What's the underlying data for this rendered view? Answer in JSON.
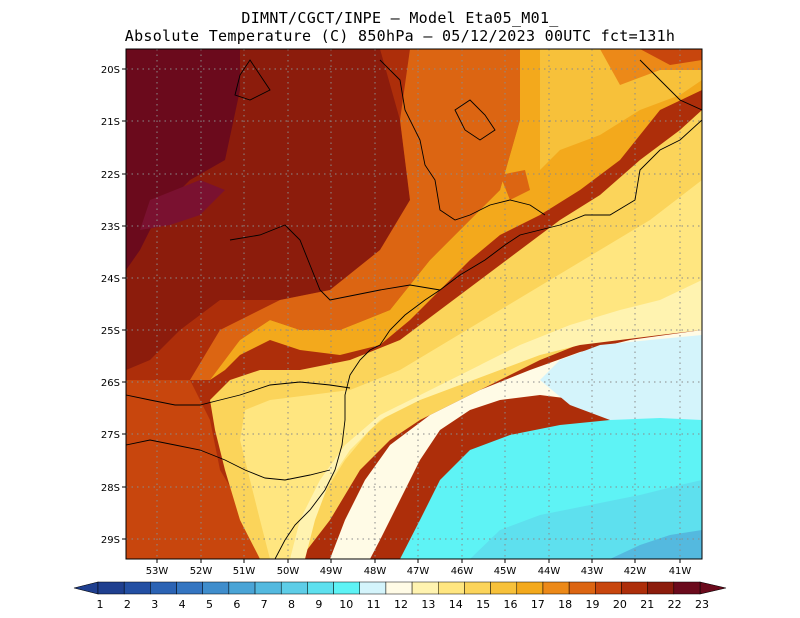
{
  "title": {
    "line1": "DIMNT/CGCT/INPE –  Model Eta05_M01_",
    "line2": "Absolute Temperature (C) 850hPa –  05/12/2023 00UTC fct=131h"
  },
  "map": {
    "lat_labels": [
      "20S",
      "21S",
      "22S",
      "23S",
      "24S",
      "25S",
      "26S",
      "27S",
      "28S",
      "29S"
    ],
    "lon_labels": [
      "53W",
      "52W",
      "51W",
      "50W",
      "49W",
      "48W",
      "47W",
      "46W",
      "45W",
      "44W",
      "43W",
      "42W",
      "41W"
    ]
  },
  "colorbar": {
    "labels": [
      "1",
      "2",
      "3",
      "4",
      "5",
      "6",
      "7",
      "8",
      "9",
      "10",
      "11",
      "12",
      "13",
      "14",
      "15",
      "16",
      "17",
      "18",
      "19",
      "20",
      "21",
      "22",
      "23"
    ],
    "colors": [
      "#1f3f8f",
      "#234fa3",
      "#2b63b4",
      "#3475c1",
      "#3f8dcc",
      "#4aa4d6",
      "#54b9df",
      "#5ecde7",
      "#5ee0ee",
      "#5ef3f5",
      "#d4f4fb",
      "#fffbe6",
      "#fff3b0",
      "#ffe680",
      "#fbd45a",
      "#f7c13a",
      "#f3a91c",
      "#ec8918",
      "#dc6512",
      "#c8460d",
      "#ad2e0a",
      "#8c1c0c",
      "#6b0a1c"
    ],
    "left_color": "#1f3f8f",
    "right_color": "#6b0a1c"
  },
  "coast_color": "#000000",
  "grid_color": "#8a8a8a"
}
